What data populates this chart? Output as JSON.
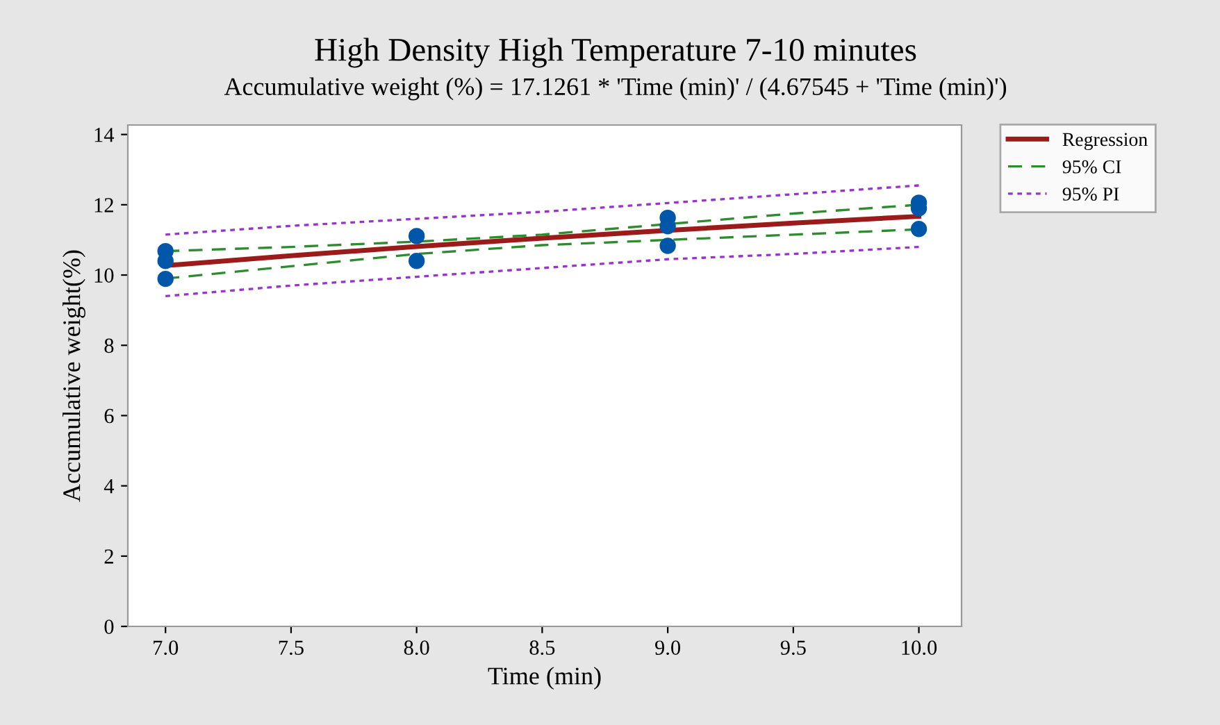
{
  "chart_data": {
    "type": "line",
    "title": "High Density High Temperature 7-10 minutes",
    "subtitle": "Accumulative weight (%) = 17.1261 * 'Time (min)' / (4.67545 + 'Time (min)')",
    "xlabel": "Time (min)",
    "ylabel": "Accumulative weight(%)",
    "series": [
      {
        "type": "scatter",
        "color": "#0056a8",
        "marker": "circle",
        "x": [
          7,
          7,
          7,
          8,
          8,
          9,
          9,
          9,
          10,
          10,
          10
        ],
        "values": [
          10.68,
          10.4,
          9.89,
          11.11,
          10.4,
          11.63,
          11.39,
          10.83,
          12.06,
          11.9,
          11.31
        ]
      },
      {
        "name": "Regression",
        "color": "#9b1b1b",
        "line_style": "solid",
        "x": [
          7,
          7.5,
          8,
          8.5,
          9,
          9.5,
          10
        ],
        "values": [
          10.27,
          10.55,
          10.81,
          11.05,
          11.27,
          11.48,
          11.67
        ]
      },
      {
        "name": "95% CI",
        "color": "#2e8b2e",
        "line_style": "dashed",
        "x": [
          7,
          7.5,
          8,
          8.5,
          9,
          9.5,
          10
        ],
        "values": [
          10.68,
          10.8,
          10.95,
          11.15,
          11.45,
          11.75,
          12.0
        ]
      },
      {
        "color": "#2e8b2e",
        "line_style": "dashed",
        "x": [
          7,
          7.5,
          8,
          8.5,
          9,
          9.5,
          10
        ],
        "values": [
          9.9,
          10.25,
          10.6,
          10.85,
          11.0,
          11.15,
          11.3
        ]
      },
      {
        "name": "95% PI",
        "color": "#9933cc",
        "line_style": "dotted",
        "x": [
          7,
          7.5,
          8,
          8.5,
          9,
          9.5,
          10
        ],
        "values": [
          11.15,
          11.4,
          11.6,
          11.8,
          12.05,
          12.3,
          12.55
        ]
      },
      {
        "color": "#9933cc",
        "line_style": "dotted",
        "x": [
          7,
          7.5,
          8,
          8.5,
          9,
          9.5,
          10
        ],
        "values": [
          9.4,
          9.7,
          9.95,
          10.2,
          10.45,
          10.6,
          10.8
        ]
      }
    ],
    "xlim": [
      6.85,
      10.17
    ],
    "ylim": [
      0,
      14.27
    ],
    "xticks": [
      {
        "value": 7,
        "label": "7.0"
      },
      {
        "value": 7.5,
        "label": "7.5"
      },
      {
        "value": 8,
        "label": "8.0"
      },
      {
        "value": 8.5,
        "label": "8.5"
      },
      {
        "value": 9,
        "label": "9.0"
      },
      {
        "value": 9.5,
        "label": "9.5"
      },
      {
        "value": 10,
        "label": "10.0"
      }
    ],
    "yticks": [
      0,
      2,
      4,
      6,
      8,
      10,
      12,
      14
    ],
    "legend": "top right"
  }
}
